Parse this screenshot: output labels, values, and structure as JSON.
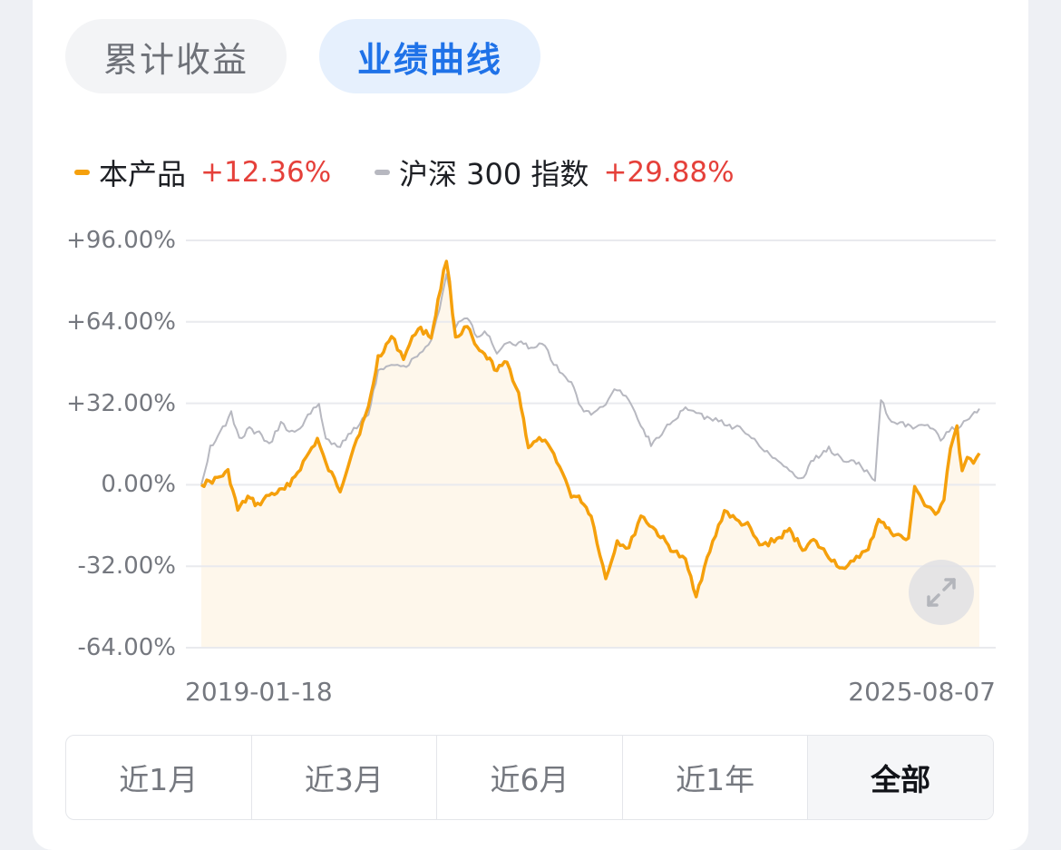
{
  "tabs": [
    {
      "label": "累计收益",
      "active": false
    },
    {
      "label": "业绩曲线",
      "active": true
    }
  ],
  "legend": [
    {
      "name": "本产品",
      "value": "+12.36%",
      "color": "#f5a00c"
    },
    {
      "name": "沪深 300 指数",
      "value": "+29.88%",
      "color": "#b7b8c0"
    }
  ],
  "y_ticks": [
    "+96.00%",
    "+64.00%",
    "+32.00%",
    "0.00%",
    "-32.00%",
    "-64.00%"
  ],
  "x_ticks": [
    "2019-01-18",
    "2025-08-07"
  ],
  "ranges": [
    {
      "label": "近1月",
      "active": false
    },
    {
      "label": "近3月",
      "active": false
    },
    {
      "label": "近6月",
      "active": false
    },
    {
      "label": "近1年",
      "active": false
    },
    {
      "label": "全部",
      "active": true
    }
  ],
  "expand_icon": "expand-arrows-icon",
  "chart_data": {
    "type": "line",
    "ylim": [
      -64,
      96
    ],
    "x_start": "2019-01-18",
    "x_end": "2025-08-07",
    "y_unit": "%",
    "grid": true,
    "legend_position": "top-left",
    "series": [
      {
        "name": "本产品",
        "color": "#f5a00c",
        "fill": true,
        "points": [
          [
            "2019-01-18",
            0
          ],
          [
            "2019-03-01",
            2
          ],
          [
            "2019-04-10",
            5
          ],
          [
            "2019-05-10",
            -10
          ],
          [
            "2019-06-10",
            -5
          ],
          [
            "2019-07-10",
            -8
          ],
          [
            "2019-08-15",
            -4
          ],
          [
            "2019-10-01",
            -2
          ],
          [
            "2019-11-10",
            5
          ],
          [
            "2020-01-10",
            18
          ],
          [
            "2020-02-05",
            8
          ],
          [
            "2020-03-20",
            -2
          ],
          [
            "2020-05-01",
            15
          ],
          [
            "2020-06-15",
            30
          ],
          [
            "2020-07-15",
            50
          ],
          [
            "2020-08-25",
            58
          ],
          [
            "2020-10-01",
            50
          ],
          [
            "2020-11-15",
            62
          ],
          [
            "2020-12-25",
            58
          ],
          [
            "2021-01-15",
            72
          ],
          [
            "2021-02-10",
            89
          ],
          [
            "2021-03-10",
            58
          ],
          [
            "2021-04-15",
            62
          ],
          [
            "2021-05-15",
            53
          ],
          [
            "2021-06-15",
            50
          ],
          [
            "2021-07-15",
            45
          ],
          [
            "2021-08-15",
            48
          ],
          [
            "2021-09-20",
            36
          ],
          [
            "2021-10-20",
            15
          ],
          [
            "2021-12-01",
            18
          ],
          [
            "2022-01-15",
            10
          ],
          [
            "2022-03-01",
            -4
          ],
          [
            "2022-04-01",
            -6
          ],
          [
            "2022-05-01",
            -12
          ],
          [
            "2022-06-15",
            -37
          ],
          [
            "2022-07-20",
            -22
          ],
          [
            "2022-08-25",
            -25
          ],
          [
            "2022-10-01",
            -12
          ],
          [
            "2022-11-15",
            -18
          ],
          [
            "2023-01-01",
            -25
          ],
          [
            "2023-02-15",
            -30
          ],
          [
            "2023-03-20",
            -43
          ],
          [
            "2023-05-01",
            -26
          ],
          [
            "2023-06-15",
            -10
          ],
          [
            "2023-07-20",
            -14
          ],
          [
            "2023-08-25",
            -16
          ],
          [
            "2023-10-01",
            -24
          ],
          [
            "2023-11-15",
            -22
          ],
          [
            "2024-01-01",
            -18
          ],
          [
            "2024-02-10",
            -25
          ],
          [
            "2024-03-15",
            -22
          ],
          [
            "2024-05-01",
            -28
          ],
          [
            "2024-06-20",
            -34
          ],
          [
            "2024-07-25",
            -28
          ],
          [
            "2024-08-30",
            -26
          ],
          [
            "2024-10-01",
            -13
          ],
          [
            "2024-11-01",
            -18
          ],
          [
            "2024-12-01",
            -20
          ],
          [
            "2025-01-01",
            -22
          ],
          [
            "2025-01-20",
            0
          ],
          [
            "2025-02-20",
            -8
          ],
          [
            "2025-03-25",
            -12
          ],
          [
            "2025-04-20",
            -5
          ],
          [
            "2025-05-10",
            15
          ],
          [
            "2025-05-30",
            22
          ],
          [
            "2025-06-15",
            5
          ],
          [
            "2025-07-01",
            10
          ],
          [
            "2025-07-20",
            8
          ],
          [
            "2025-08-07",
            12.36
          ]
        ]
      },
      {
        "name": "沪深 300 指数",
        "color": "#b7b8c0",
        "fill": false,
        "points": [
          [
            "2019-01-18",
            0
          ],
          [
            "2019-02-15",
            15
          ],
          [
            "2019-03-25",
            22
          ],
          [
            "2019-04-20",
            28
          ],
          [
            "2019-05-15",
            18
          ],
          [
            "2019-06-15",
            22
          ],
          [
            "2019-07-15",
            20
          ],
          [
            "2019-08-15",
            16
          ],
          [
            "2019-09-20",
            24
          ],
          [
            "2019-11-01",
            20
          ],
          [
            "2019-12-20",
            28
          ],
          [
            "2020-01-15",
            32
          ],
          [
            "2020-02-05",
            18
          ],
          [
            "2020-03-20",
            15
          ],
          [
            "2020-05-01",
            22
          ],
          [
            "2020-06-15",
            28
          ],
          [
            "2020-07-15",
            45
          ],
          [
            "2020-08-25",
            48
          ],
          [
            "2020-10-01",
            46
          ],
          [
            "2020-11-20",
            52
          ],
          [
            "2020-12-25",
            56
          ],
          [
            "2021-01-20",
            70
          ],
          [
            "2021-02-10",
            83
          ],
          [
            "2021-03-10",
            62
          ],
          [
            "2021-04-15",
            66
          ],
          [
            "2021-05-15",
            58
          ],
          [
            "2021-06-15",
            60
          ],
          [
            "2021-07-15",
            52
          ],
          [
            "2021-08-15",
            55
          ],
          [
            "2021-09-20",
            56
          ],
          [
            "2021-10-20",
            54
          ],
          [
            "2021-12-01",
            56
          ],
          [
            "2022-01-15",
            46
          ],
          [
            "2022-03-01",
            40
          ],
          [
            "2022-04-01",
            30
          ],
          [
            "2022-05-01",
            28
          ],
          [
            "2022-06-15",
            32
          ],
          [
            "2022-07-20",
            38
          ],
          [
            "2022-08-25",
            34
          ],
          [
            "2022-10-01",
            24
          ],
          [
            "2022-11-01",
            16
          ],
          [
            "2023-01-15",
            26
          ],
          [
            "2023-02-15",
            30
          ],
          [
            "2023-03-20",
            28
          ],
          [
            "2023-05-01",
            26
          ],
          [
            "2023-06-15",
            24
          ],
          [
            "2023-08-01",
            22
          ],
          [
            "2023-09-15",
            18
          ],
          [
            "2023-11-01",
            12
          ],
          [
            "2024-01-01",
            6
          ],
          [
            "2024-02-05",
            2
          ],
          [
            "2024-03-15",
            10
          ],
          [
            "2024-05-01",
            14
          ],
          [
            "2024-06-15",
            10
          ],
          [
            "2024-08-01",
            8
          ],
          [
            "2024-09-20",
            2
          ],
          [
            "2024-10-08",
            34
          ],
          [
            "2024-11-01",
            26
          ],
          [
            "2024-12-15",
            24
          ],
          [
            "2025-01-15",
            22
          ],
          [
            "2025-03-01",
            24
          ],
          [
            "2025-04-10",
            18
          ],
          [
            "2025-05-15",
            22
          ],
          [
            "2025-06-20",
            24
          ],
          [
            "2025-07-15",
            28
          ],
          [
            "2025-08-07",
            29.88
          ]
        ]
      }
    ]
  }
}
